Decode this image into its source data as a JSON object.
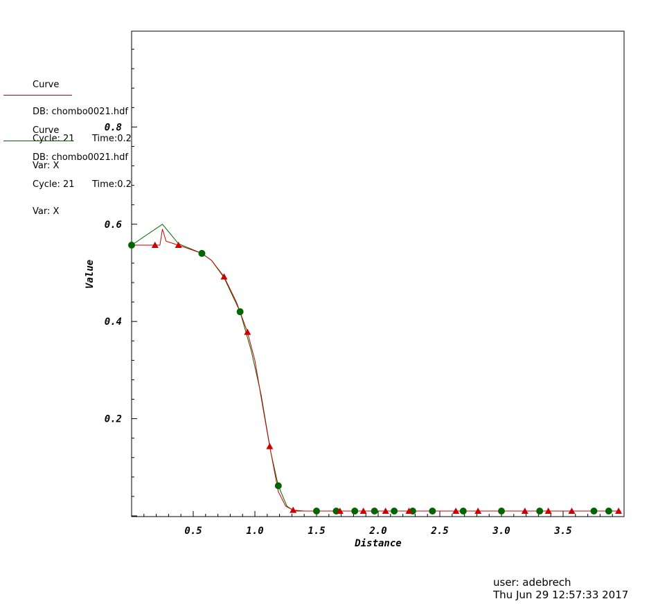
{
  "legend": [
    {
      "title": "Curve",
      "db": "DB: chombo0021.hdf",
      "cycle": "Cycle: 21",
      "time": "Time:0.2",
      "var": "Var: X",
      "color": "#cc0000"
    },
    {
      "title": "Curve",
      "db": "DB: chombo0021.hdf",
      "cycle": "Cycle: 21",
      "time": "Time:0.2",
      "var": "Var: X",
      "color": "#006600"
    }
  ],
  "footer": {
    "user": "user: adebrech",
    "date": "Thu Jun 29 12:57:33 2017"
  },
  "chart_data": {
    "type": "line",
    "xlabel": "Distance",
    "ylabel": "Value",
    "xlim": [
      0.0,
      3.97
    ],
    "ylim": [
      0.0,
      1.0
    ],
    "xticks": [
      "0.5",
      "1.0",
      "1.5",
      "2.0",
      "2.5",
      "3.0",
      "3.5"
    ],
    "yticks": [
      "0.2",
      "0.4",
      "0.6",
      "0.8"
    ],
    "series": [
      {
        "color": "#cc0000",
        "marker": "triangle",
        "points": [
          [
            0.0,
            0.557
          ],
          [
            0.19,
            0.557
          ],
          [
            0.23,
            0.557
          ],
          [
            0.25,
            0.59
          ],
          [
            0.28,
            0.565
          ],
          [
            0.38,
            0.557
          ],
          [
            0.57,
            0.54
          ],
          [
            0.65,
            0.525
          ],
          [
            0.75,
            0.492
          ],
          [
            0.85,
            0.44
          ],
          [
            0.94,
            0.378
          ],
          [
            1.0,
            0.32
          ],
          [
            1.06,
            0.23
          ],
          [
            1.12,
            0.143
          ],
          [
            1.19,
            0.05
          ],
          [
            1.25,
            0.02
          ],
          [
            1.31,
            0.012
          ],
          [
            1.4,
            0.01
          ],
          [
            1.69,
            0.01
          ],
          [
            1.88,
            0.01
          ],
          [
            2.06,
            0.01
          ],
          [
            2.25,
            0.01
          ],
          [
            2.63,
            0.01
          ],
          [
            2.81,
            0.01
          ],
          [
            3.19,
            0.01
          ],
          [
            3.38,
            0.01
          ],
          [
            3.57,
            0.01
          ],
          [
            3.95,
            0.01
          ]
        ],
        "markers": [
          [
            0.19,
            0.557
          ],
          [
            0.38,
            0.557
          ],
          [
            0.75,
            0.492
          ],
          [
            0.94,
            0.378
          ],
          [
            1.12,
            0.143
          ],
          [
            1.31,
            0.012
          ],
          [
            1.69,
            0.01
          ],
          [
            1.88,
            0.01
          ],
          [
            2.06,
            0.01
          ],
          [
            2.25,
            0.01
          ],
          [
            2.63,
            0.01
          ],
          [
            2.81,
            0.01
          ],
          [
            3.19,
            0.01
          ],
          [
            3.38,
            0.01
          ],
          [
            3.57,
            0.01
          ],
          [
            3.95,
            0.01
          ]
        ]
      },
      {
        "color": "#006600",
        "marker": "circle",
        "points": [
          [
            0.0,
            0.557
          ],
          [
            0.25,
            0.6
          ],
          [
            0.38,
            0.56
          ],
          [
            0.57,
            0.54
          ],
          [
            0.65,
            0.525
          ],
          [
            0.75,
            0.49
          ],
          [
            0.88,
            0.42
          ],
          [
            0.97,
            0.34
          ],
          [
            1.05,
            0.25
          ],
          [
            1.13,
            0.13
          ],
          [
            1.19,
            0.062
          ],
          [
            1.26,
            0.02
          ],
          [
            1.32,
            0.01
          ],
          [
            1.5,
            0.01
          ],
          [
            1.66,
            0.01
          ],
          [
            1.81,
            0.01
          ],
          [
            1.97,
            0.01
          ],
          [
            2.13,
            0.01
          ],
          [
            2.28,
            0.01
          ],
          [
            2.44,
            0.01
          ],
          [
            2.69,
            0.01
          ],
          [
            3.0,
            0.01
          ],
          [
            3.31,
            0.01
          ],
          [
            3.75,
            0.01
          ],
          [
            3.87,
            0.01
          ],
          [
            3.97,
            0.01
          ]
        ],
        "markers": [
          [
            0.0,
            0.557
          ],
          [
            0.57,
            0.54
          ],
          [
            0.88,
            0.42
          ],
          [
            1.19,
            0.062
          ],
          [
            1.5,
            0.01
          ],
          [
            1.66,
            0.01
          ],
          [
            1.81,
            0.01
          ],
          [
            1.97,
            0.01
          ],
          [
            2.13,
            0.01
          ],
          [
            2.28,
            0.01
          ],
          [
            2.44,
            0.01
          ],
          [
            2.69,
            0.01
          ],
          [
            3.0,
            0.01
          ],
          [
            3.31,
            0.01
          ],
          [
            3.75,
            0.01
          ],
          [
            3.87,
            0.01
          ]
        ]
      }
    ]
  }
}
